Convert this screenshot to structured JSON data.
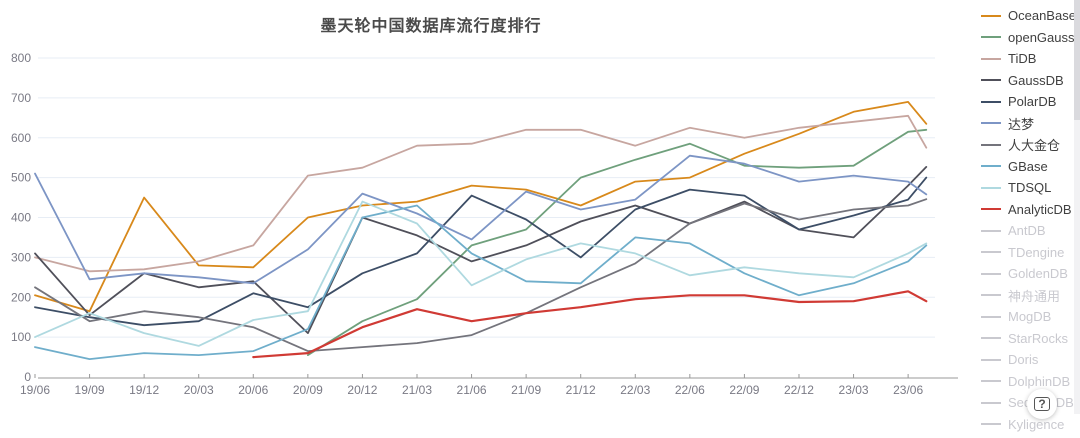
{
  "chart": {
    "title": "墨天轮中国数据库流行度排行"
  },
  "chart_data": {
    "type": "line",
    "title": "墨天轮中国数据库流行度排行",
    "xlabel": "",
    "ylabel": "",
    "ylim": [
      0,
      800
    ],
    "y_tick_step": 100,
    "y_tick_labels": [
      "0",
      "100",
      "200",
      "300",
      "400",
      "500",
      "600",
      "700",
      "800"
    ],
    "grid": true,
    "legend_position": "right",
    "x_tick_labels": [
      "19/06",
      "19/09",
      "19/12",
      "20/03",
      "20/06",
      "20/09",
      "20/12",
      "21/03",
      "21/06",
      "21/09",
      "21/12",
      "22/03",
      "22/06",
      "22/09",
      "22/12",
      "23/03",
      "23/06"
    ],
    "x_months": [
      0,
      3,
      6,
      9,
      12,
      15,
      18,
      21,
      24,
      27,
      30,
      33,
      36,
      39,
      42,
      45,
      48,
      49
    ],
    "note": "values estimated from gridlines at each quarterly tick; final entry is the unlabeled line end one month after 23/06",
    "series": [
      {
        "name": "OceanBase",
        "color": "#d8891b",
        "values": [
          205,
          165,
          450,
          280,
          275,
          400,
          430,
          440,
          480,
          470,
          430,
          490,
          500,
          560,
          610,
          665,
          690,
          635
        ]
      },
      {
        "name": "openGauss",
        "color": "#6fa07c",
        "values": [
          null,
          null,
          null,
          null,
          null,
          55,
          140,
          195,
          330,
          370,
          500,
          545,
          585,
          530,
          525,
          530,
          615,
          620
        ]
      },
      {
        "name": "TiDB",
        "color": "#c7a6a0",
        "values": [
          300,
          265,
          270,
          290,
          330,
          505,
          525,
          580,
          585,
          620,
          620,
          580,
          625,
          600,
          625,
          640,
          655,
          575
        ]
      },
      {
        "name": "GaussDB",
        "color": "#50505a",
        "values": [
          310,
          155,
          260,
          225,
          240,
          110,
          400,
          355,
          290,
          330,
          390,
          430,
          385,
          440,
          370,
          350,
          480,
          527
        ]
      },
      {
        "name": "PolarDB",
        "color": "#3d4e66",
        "values": [
          175,
          150,
          130,
          140,
          210,
          175,
          260,
          310,
          455,
          395,
          300,
          420,
          470,
          455,
          370,
          405,
          445,
          500
        ]
      },
      {
        "name": "达梦",
        "color": "#7d95c5",
        "values": [
          510,
          245,
          260,
          250,
          235,
          320,
          460,
          410,
          345,
          465,
          420,
          445,
          555,
          535,
          490,
          505,
          490,
          458
        ]
      },
      {
        "name": "人大金仓",
        "color": "#74747c",
        "values": [
          225,
          140,
          165,
          150,
          125,
          65,
          75,
          85,
          105,
          160,
          225,
          285,
          385,
          435,
          395,
          420,
          430,
          446
        ]
      },
      {
        "name": "GBase",
        "color": "#6faecb",
        "values": [
          75,
          45,
          60,
          55,
          65,
          120,
          400,
          430,
          310,
          240,
          235,
          350,
          335,
          260,
          205,
          235,
          290,
          330
        ]
      },
      {
        "name": "TDSQL",
        "color": "#afd9e0",
        "values": [
          100,
          160,
          110,
          78,
          143,
          165,
          440,
          385,
          230,
          295,
          335,
          310,
          255,
          275,
          260,
          250,
          310,
          335
        ]
      },
      {
        "name": "AnalyticDB",
        "color": "#d03a34",
        "values": [
          null,
          null,
          null,
          null,
          50,
          60,
          125,
          170,
          140,
          160,
          175,
          195,
          205,
          205,
          188,
          190,
          215,
          190
        ]
      }
    ],
    "disabled_series": [
      {
        "name": "AntDB"
      },
      {
        "name": "TDengine"
      },
      {
        "name": "GoldenDB"
      },
      {
        "name": "神舟通用"
      },
      {
        "name": "MogDB"
      },
      {
        "name": "StarRocks"
      },
      {
        "name": "Doris"
      },
      {
        "name": "DolphinDB"
      },
      {
        "name": "SequoiaDB"
      },
      {
        "name": "Kyligence"
      }
    ],
    "disabled_color": "#c9c9cf"
  },
  "help_button": {
    "label": "?"
  },
  "layout_colors": {
    "grid_line": "#e7edf5",
    "axis_line": "#999999",
    "axis_text": "#7a7a85",
    "title_text": "#4a4a4a"
  }
}
